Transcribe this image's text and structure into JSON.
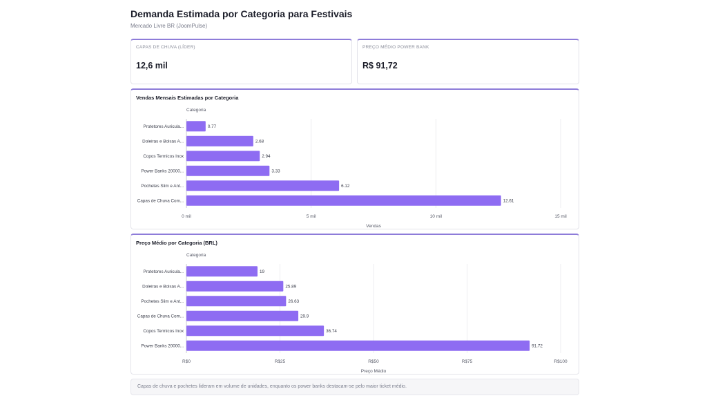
{
  "header": {
    "title": "Demanda Estimada por Categoria para Festivais",
    "subtitle": "Mercado Livre BR (JoomPulse)"
  },
  "kpis": [
    {
      "label": "CAPAS DE CHUVA (LÍDER)",
      "value": "12,6 mil"
    },
    {
      "label": "PREÇO MÉDIO POWER BANK",
      "value": "R$ 91,72"
    }
  ],
  "colors": {
    "bar": "#8e6cf2",
    "accent": "#8e7cd9",
    "grid": "#ececf0"
  },
  "chart_data": [
    {
      "type": "bar",
      "orientation": "horizontal",
      "title": "Vendas Mensais Estimadas por Categoria",
      "category_axis_label": "Categoria",
      "xlabel": "Vendas",
      "categories": [
        "Protetores Auricula...",
        "Doleiras e Bolsas A...",
        "Copos Termicos Inox",
        "Power Banks 20000...",
        "Pochetes Slim e Ant...",
        "Capas de Chuva Com..."
      ],
      "values": [
        0.77,
        2.68,
        2.94,
        3.33,
        6.12,
        12.61
      ],
      "data_labels": [
        "0.77",
        "2.68",
        "2.94",
        "3.33",
        "6.12",
        "12.61"
      ],
      "xlim": [
        0,
        15
      ],
      "ticks": [
        0,
        5,
        10,
        15
      ],
      "tick_labels": [
        "0 mil",
        "5 mil",
        "10 mil",
        "15 mil"
      ]
    },
    {
      "type": "bar",
      "orientation": "horizontal",
      "title": "Preço Médio por Categoria (BRL)",
      "category_axis_label": "Categoria",
      "xlabel": "Preço Médio",
      "categories": [
        "Protetores Auricula...",
        "Doleiras e Bolsas A...",
        "Pochetes Slim e Ant...",
        "Capas de Chuva Com...",
        "Copos Termicos Inox",
        "Power Banks 20000..."
      ],
      "values": [
        19,
        25.89,
        26.63,
        29.9,
        36.74,
        91.72
      ],
      "data_labels": [
        "19",
        "25.89",
        "26.63",
        "29.9",
        "36.74",
        "91.72"
      ],
      "xlim": [
        0,
        100
      ],
      "ticks": [
        0,
        25,
        50,
        75,
        100
      ],
      "tick_labels": [
        "R$0",
        "R$25",
        "R$50",
        "R$75",
        "R$100"
      ]
    }
  ],
  "footer": {
    "note": "Capas de chuva e pochetes lideram em volume de unidades, enquanto os power banks destacam-se pelo maior ticket médio."
  }
}
